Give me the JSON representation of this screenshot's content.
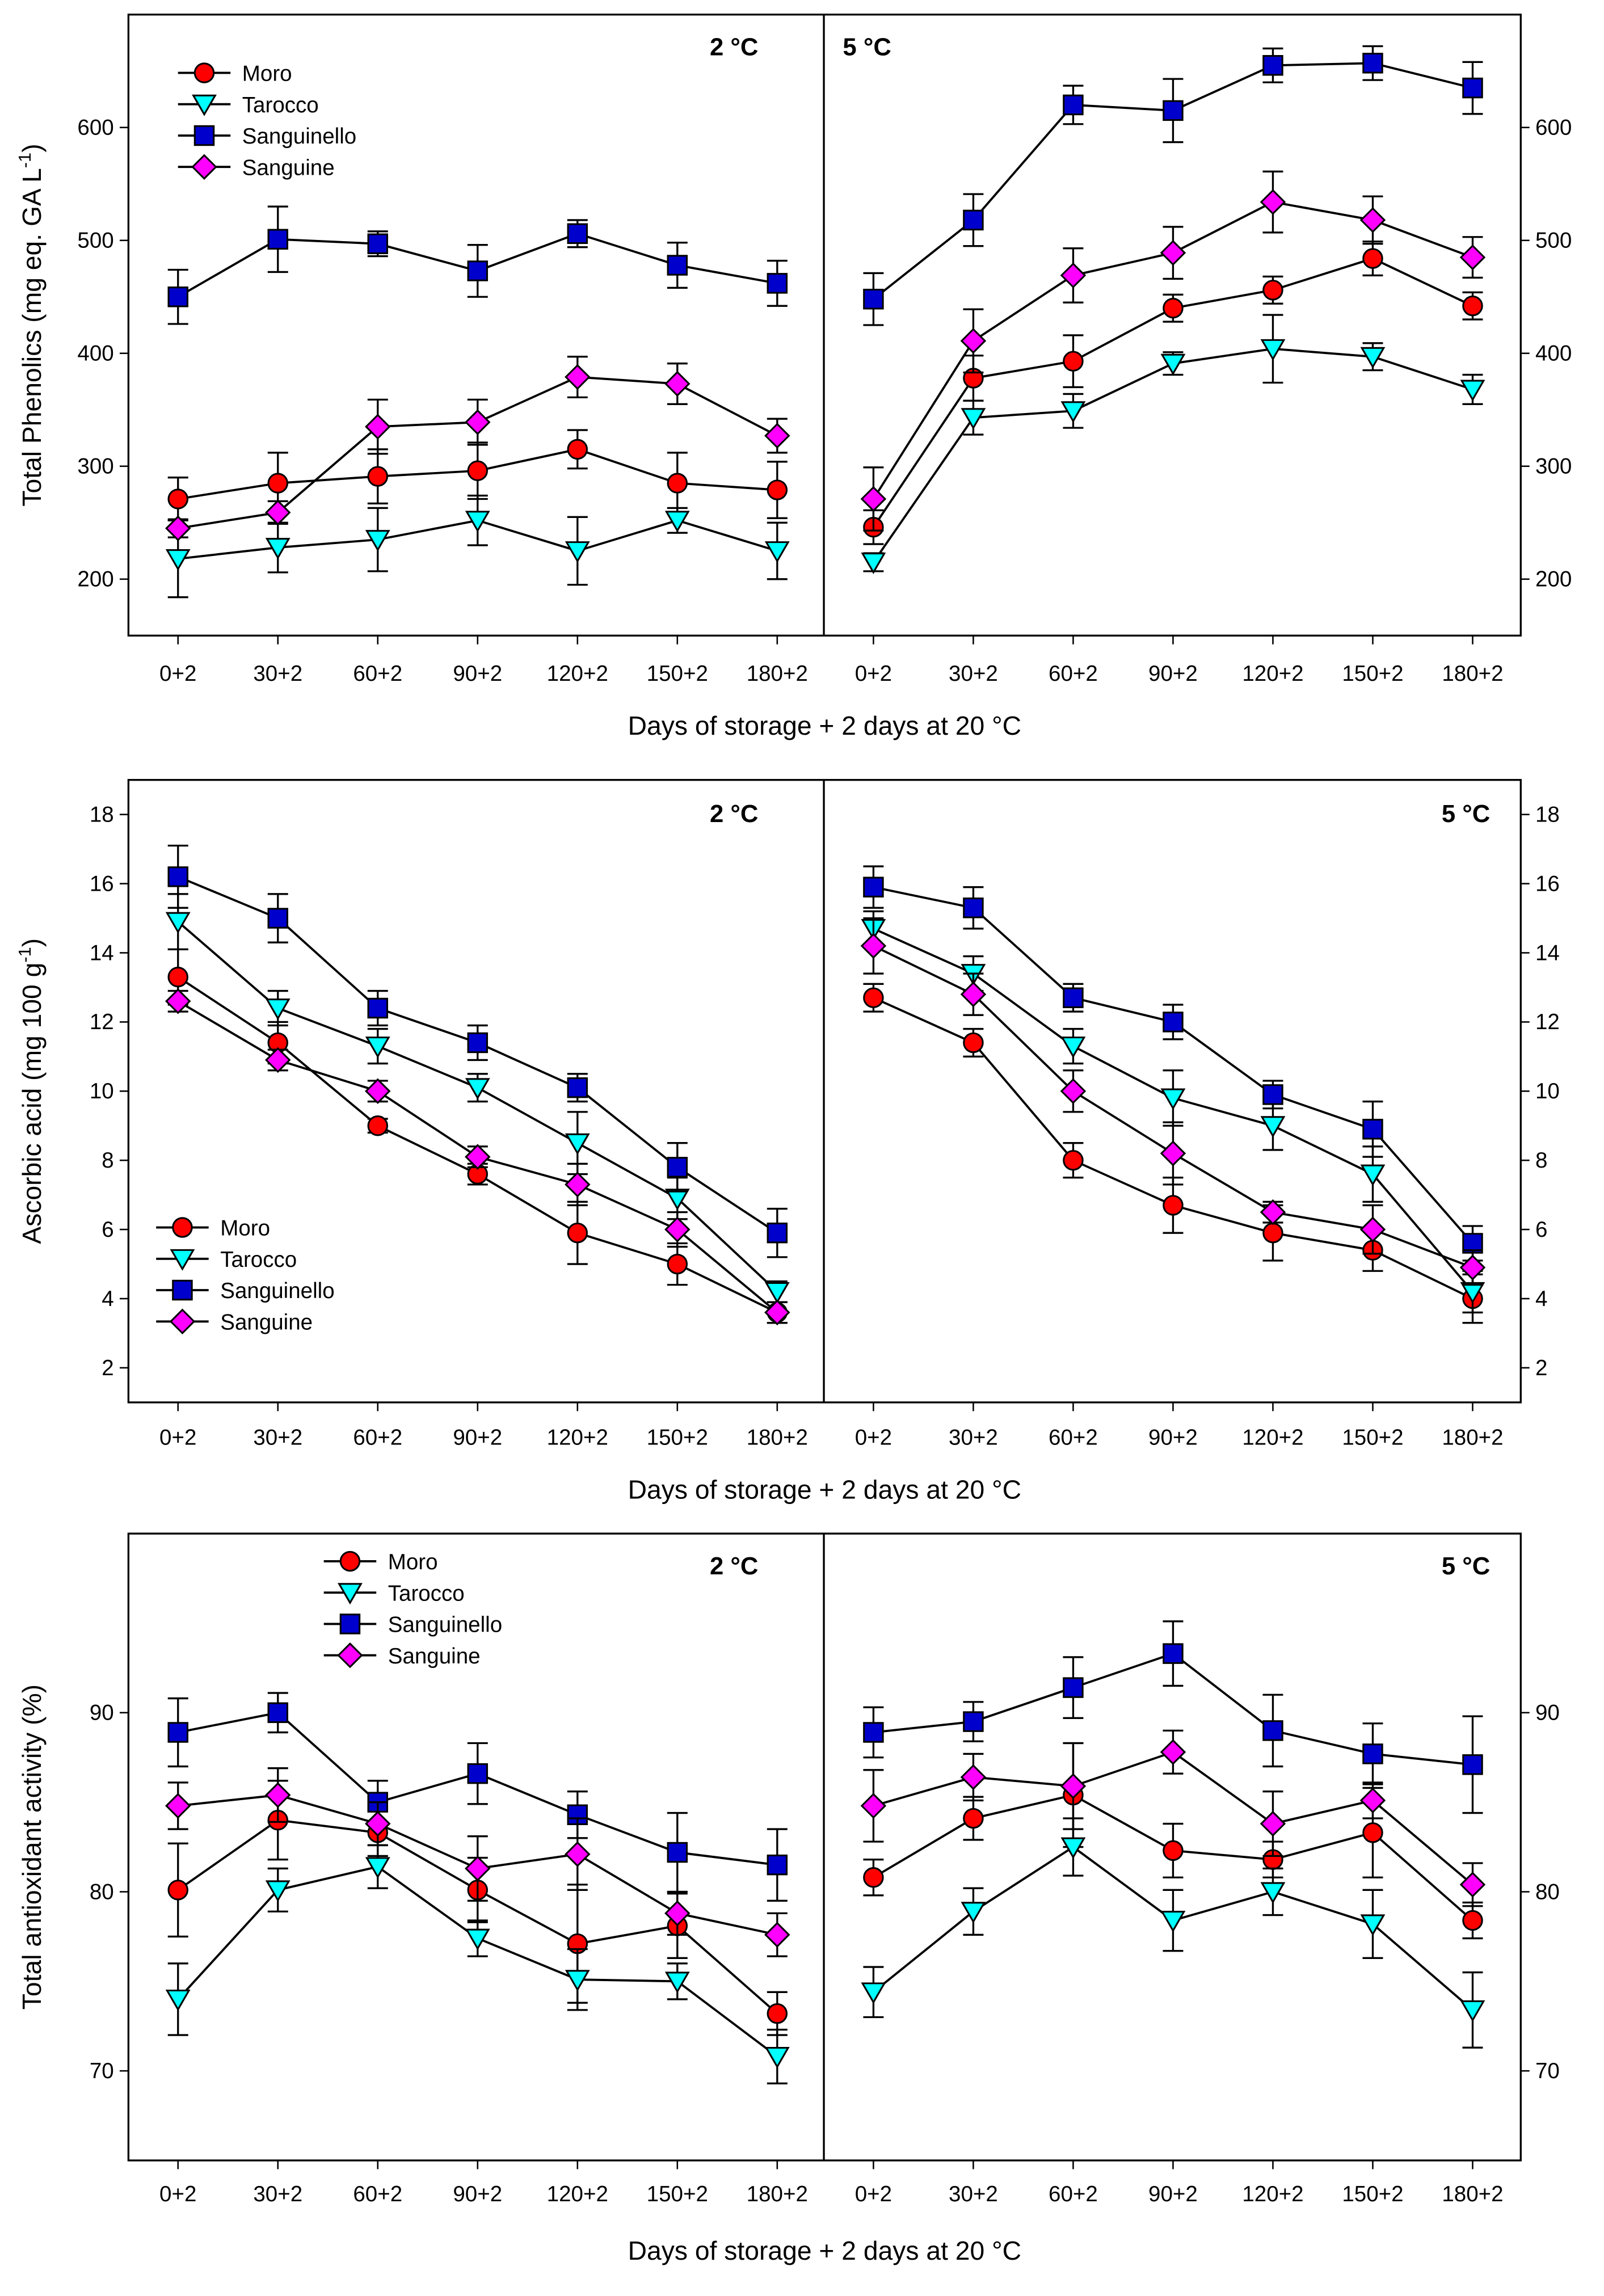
{
  "chart_data": [
    {
      "type": "line",
      "ylabel": "Total Phenolics (mg eq. GA L",
      "ylabel_sup": "-1",
      "ylabel_end": ")",
      "xlabel": "Days of storage + 2 days at 20 °C",
      "categories": [
        "0+2",
        "30+2",
        "60+2",
        "90+2",
        "120+2",
        "150+2",
        "180+2"
      ],
      "ylim": [
        150,
        700
      ],
      "yticks": [
        200,
        300,
        400,
        500,
        600
      ],
      "legend_panel": "left",
      "legend_placement": "top-left",
      "panels": [
        {
          "label": "2 °C",
          "series": [
            {
              "name": "Moro",
              "values": [
                271,
                285,
                291,
                296,
                315,
                285,
                279
              ],
              "err": [
                19,
                27,
                24,
                25,
                17,
                27,
                25
              ]
            },
            {
              "name": "Tarocco",
              "values": [
                218,
                228,
                235,
                252,
                225,
                252,
                225
              ],
              "err": [
                34,
                22,
                28,
                22,
                30,
                11,
                25
              ]
            },
            {
              "name": "Sanguinello",
              "values": [
                450,
                501,
                497,
                473,
                506,
                478,
                462
              ],
              "err": [
                24,
                29,
                11,
                23,
                12,
                20,
                20
              ]
            },
            {
              "name": "Sanguine",
              "values": [
                245,
                259,
                335,
                339,
                379,
                373,
                327
              ],
              "err": [
                8,
                10,
                24,
                20,
                18,
                18,
                15
              ]
            }
          ]
        },
        {
          "label": "5 °C",
          "series": [
            {
              "name": "Moro",
              "values": [
                246,
                378,
                393,
                440,
                456,
                484,
                442
              ],
              "err": [
                15,
                20,
                23,
                12,
                12,
                15,
                12
              ]
            },
            {
              "name": "Tarocco",
              "values": [
                215,
                343,
                349,
                391,
                404,
                397,
                368
              ],
              "err": [
                8,
                15,
                15,
                10,
                30,
                12,
                13
              ]
            },
            {
              "name": "Sanguinello",
              "values": [
                448,
                518,
                620,
                615,
                655,
                657,
                635
              ],
              "err": [
                23,
                23,
                17,
                28,
                15,
                15,
                23
              ]
            },
            {
              "name": "Sanguine",
              "values": [
                271,
                411,
                469,
                489,
                534,
                518,
                485
              ],
              "err": [
                28,
                28,
                24,
                23,
                27,
                21,
                18
              ]
            }
          ]
        }
      ]
    },
    {
      "type": "line",
      "ylabel": "Ascorbic acid (mg 100 g",
      "ylabel_sup": "-1",
      "ylabel_end": ")",
      "xlabel": "Days of storage + 2 days at 20 °C",
      "categories": [
        "0+2",
        "30+2",
        "60+2",
        "90+2",
        "120+2",
        "150+2",
        "180+2"
      ],
      "ylim": [
        1,
        19
      ],
      "yticks": [
        2,
        4,
        6,
        8,
        10,
        12,
        14,
        16,
        18
      ],
      "legend_panel": "left",
      "legend_placement": "bottom-left",
      "panels": [
        {
          "label": "2 °C",
          "series": [
            {
              "name": "Moro",
              "values": [
                13.3,
                11.4,
                9.0,
                7.6,
                5.9,
                5.0,
                3.6
              ],
              "err": [
                0.8,
                0.6,
                0.2,
                0.3,
                0.9,
                0.6,
                0.3
              ]
            },
            {
              "name": "Tarocco",
              "values": [
                14.9,
                12.4,
                11.3,
                10.1,
                8.5,
                6.9,
                4.2
              ],
              "err": [
                0.8,
                0.5,
                0.5,
                0.4,
                0.9,
                0.6,
                0.3
              ]
            },
            {
              "name": "Sanguinello",
              "values": [
                16.2,
                15.0,
                12.4,
                11.4,
                10.1,
                7.8,
                5.9
              ],
              "err": [
                0.9,
                0.7,
                0.5,
                0.5,
                0.4,
                0.7,
                0.7
              ]
            },
            {
              "name": "Sanguine",
              "values": [
                12.6,
                10.9,
                10.0,
                8.1,
                7.3,
                6.0,
                3.6
              ],
              "err": [
                0.3,
                0.3,
                0.3,
                0.3,
                0.6,
                0.5,
                0.3
              ]
            }
          ]
        },
        {
          "label": "5 °C",
          "series": [
            {
              "name": "Moro",
              "values": [
                12.7,
                11.4,
                8.0,
                6.7,
                5.9,
                5.4,
                4.0
              ],
              "err": [
                0.4,
                0.4,
                0.5,
                0.8,
                0.8,
                0.6,
                0.7
              ]
            },
            {
              "name": "Tarocco",
              "values": [
                14.7,
                13.4,
                11.3,
                9.8,
                9.0,
                7.6,
                4.2
              ],
              "err": [
                0.5,
                0.5,
                0.5,
                0.8,
                0.7,
                0.8,
                0.6
              ]
            },
            {
              "name": "Sanguinello",
              "values": [
                15.9,
                15.3,
                12.7,
                12.0,
                9.9,
                8.9,
                5.6
              ],
              "err": [
                0.6,
                0.6,
                0.4,
                0.5,
                0.4,
                0.8,
                0.5
              ]
            },
            {
              "name": "Sanguine",
              "values": [
                14.2,
                12.8,
                10.0,
                8.2,
                6.5,
                6.0,
                4.9
              ],
              "err": [
                0.8,
                0.6,
                0.6,
                0.9,
                0.3,
                0.7,
                0.5
              ]
            }
          ]
        }
      ]
    },
    {
      "type": "line",
      "ylabel": "Total antioxidant activity (%)",
      "xlabel": "Days of storage + 2 days at 20 °C",
      "categories": [
        "0+2",
        "30+2",
        "60+2",
        "90+2",
        "120+2",
        "150+2",
        "180+2"
      ],
      "ylim": [
        65,
        100
      ],
      "yticks": [
        70,
        80,
        90
      ],
      "legend_panel": "left",
      "legend_placement": "top-center",
      "panels": [
        {
          "label": "2 °C",
          "series": [
            {
              "name": "Moro",
              "values": [
                80.1,
                84.0,
                83.3,
                80.1,
                77.1,
                78.1,
                73.2
              ],
              "err": [
                2.6,
                2.2,
                1.3,
                1.8,
                3.3,
                1.8,
                1.2
              ]
            },
            {
              "name": "Tarocco",
              "values": [
                74.0,
                80.1,
                81.4,
                77.4,
                75.1,
                75.0,
                70.8
              ],
              "err": [
                2.0,
                1.2,
                1.2,
                1.0,
                1.7,
                1.0,
                1.5
              ]
            },
            {
              "name": "Sanguinello",
              "values": [
                88.9,
                90.0,
                85.0,
                86.6,
                84.3,
                82.2,
                81.5
              ],
              "err": [
                1.9,
                1.1,
                1.2,
                1.7,
                1.3,
                2.2,
                2.0
              ]
            },
            {
              "name": "Sanguine",
              "values": [
                84.8,
                85.4,
                83.8,
                81.3,
                82.1,
                78.8,
                77.6
              ],
              "err": [
                1.3,
                1.5,
                1.2,
                1.8,
                2.0,
                1.2,
                1.2
              ]
            }
          ]
        },
        {
          "label": "5 °C",
          "series": [
            {
              "name": "Moro",
              "values": [
                80.8,
                84.1,
                85.4,
                82.3,
                81.8,
                83.3,
                78.4
              ],
              "err": [
                1.0,
                1.2,
                2.9,
                1.5,
                1.0,
                2.5,
                1.0
              ]
            },
            {
              "name": "Tarocco",
              "values": [
                74.4,
                78.9,
                82.5,
                78.4,
                80.0,
                78.2,
                73.4
              ],
              "err": [
                1.4,
                1.3,
                1.6,
                1.7,
                1.3,
                1.9,
                2.1
              ]
            },
            {
              "name": "Sanguinello",
              "values": [
                88.9,
                89.5,
                91.4,
                93.3,
                89.0,
                87.7,
                87.1
              ],
              "err": [
                1.4,
                1.1,
                1.7,
                1.8,
                2.0,
                1.7,
                2.7
              ]
            },
            {
              "name": "Sanguine",
              "values": [
                84.8,
                86.4,
                85.9,
                87.8,
                83.8,
                85.1,
                80.4
              ],
              "err": [
                2.0,
                1.3,
                2.4,
                1.2,
                1.8,
                1.0,
                1.2
              ]
            }
          ]
        }
      ]
    }
  ],
  "series_style": {
    "Moro": {
      "marker": "circle",
      "color": "#ff0000"
    },
    "Tarocco": {
      "marker": "triangle-down",
      "color": "#00ffff"
    },
    "Sanguinello": {
      "marker": "square",
      "color": "#0000cc"
    },
    "Sanguine": {
      "marker": "diamond",
      "color": "#ff00ff"
    }
  }
}
